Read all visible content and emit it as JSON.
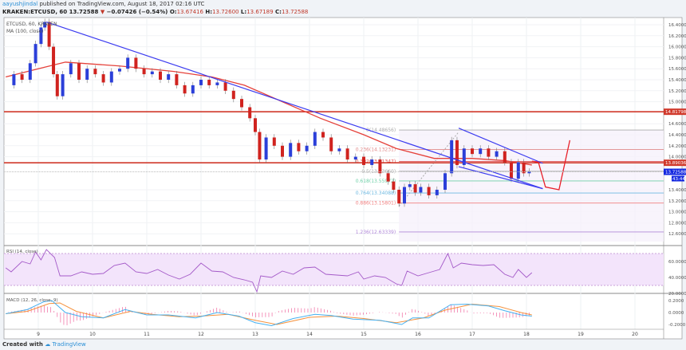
{
  "header": {
    "author": "aayushjindal",
    "published": "published on TradingView.com, August 18, 2017 02:16 UTC",
    "symbol": "KRAKEN:ETCUSD, 60",
    "last": "13.72588",
    "change": "−0.07426 (−0.54%)",
    "o_label": "O:",
    "o": "13.67416",
    "h_label": "H:",
    "h": "13.72600",
    "l_label": "L:",
    "l": "13.67189",
    "c_label": "C:",
    "c": "13.72588"
  },
  "legend": {
    "main": "ETCUSD, 60, KRAKEN",
    "ma": "MA (100, close)",
    "rsi": "RSI (14, close)",
    "macd": "MACD (12, 26, close, 9)"
  },
  "footer": {
    "created": "Created with",
    "brand": "TradingView"
  },
  "colors": {
    "up": "#2b3fd9",
    "down": "#d0231f",
    "ma": "#e5413a",
    "trend": "#3b3bf0",
    "hline": "#d0392b",
    "rsi": "#a45ac8",
    "macd": "#45b0f0",
    "signal": "#f5923e",
    "hist": "#f06aa0"
  },
  "chart_data": {
    "type": "candlestick",
    "x_ticks": [
      "9",
      "10",
      "11",
      "12",
      "13",
      "14",
      "15",
      "16",
      "17",
      "18",
      "19",
      "20"
    ],
    "price_ticks": [
      "16.40000",
      "16.20000",
      "16.00000",
      "15.80000",
      "15.60000",
      "15.40000",
      "15.20000",
      "15.00000",
      "14.60000",
      "14.40000",
      "14.20000",
      "14.00000",
      "13.40000",
      "13.20000",
      "13.00000",
      "12.80000",
      "12.60000"
    ],
    "ylim": [
      12.6,
      16.45
    ],
    "close_series": [
      [
        8.4,
        15.3
      ],
      [
        8.55,
        15.5
      ],
      [
        8.7,
        15.4
      ],
      [
        8.85,
        15.7
      ],
      [
        8.95,
        16.05
      ],
      [
        9.05,
        16.35
      ],
      [
        9.12,
        16.45
      ],
      [
        9.2,
        16.0
      ],
      [
        9.28,
        15.5
      ],
      [
        9.35,
        15.1
      ],
      [
        9.45,
        15.5
      ],
      [
        9.6,
        15.7
      ],
      [
        9.75,
        15.4
      ],
      [
        9.9,
        15.6
      ],
      [
        10.05,
        15.5
      ],
      [
        10.2,
        15.35
      ],
      [
        10.35,
        15.55
      ],
      [
        10.5,
        15.6
      ],
      [
        10.65,
        15.8
      ],
      [
        10.8,
        15.6
      ],
      [
        10.95,
        15.5
      ],
      [
        11.1,
        15.55
      ],
      [
        11.25,
        15.4
      ],
      [
        11.4,
        15.5
      ],
      [
        11.55,
        15.3
      ],
      [
        11.7,
        15.15
      ],
      [
        11.85,
        15.3
      ],
      [
        12.0,
        15.4
      ],
      [
        12.15,
        15.3
      ],
      [
        12.3,
        15.35
      ],
      [
        12.45,
        15.2
      ],
      [
        12.6,
        15.05
      ],
      [
        12.75,
        14.9
      ],
      [
        12.9,
        14.7
      ],
      [
        13.0,
        14.45
      ],
      [
        13.08,
        13.95
      ],
      [
        13.2,
        14.35
      ],
      [
        13.35,
        14.2
      ],
      [
        13.5,
        14.0
      ],
      [
        13.65,
        14.25
      ],
      [
        13.8,
        14.1
      ],
      [
        13.95,
        14.2
      ],
      [
        14.1,
        14.45
      ],
      [
        14.25,
        14.35
      ],
      [
        14.4,
        14.1
      ],
      [
        14.55,
        14.15
      ],
      [
        14.7,
        13.95
      ],
      [
        14.85,
        14.0
      ],
      [
        15.0,
        13.85
      ],
      [
        15.15,
        13.95
      ],
      [
        15.3,
        13.7
      ],
      [
        15.45,
        13.55
      ],
      [
        15.55,
        13.4
      ],
      [
        15.65,
        13.15
      ],
      [
        15.75,
        13.45
      ],
      [
        15.85,
        13.5
      ],
      [
        15.95,
        13.35
      ],
      [
        16.05,
        13.45
      ],
      [
        16.2,
        13.3
      ],
      [
        16.35,
        13.4
      ],
      [
        16.5,
        13.7
      ],
      [
        16.62,
        14.3
      ],
      [
        16.72,
        13.85
      ],
      [
        16.85,
        14.15
      ],
      [
        17.0,
        14.05
      ],
      [
        17.15,
        14.15
      ],
      [
        17.3,
        14.0
      ],
      [
        17.45,
        14.1
      ],
      [
        17.6,
        13.9
      ],
      [
        17.72,
        13.6
      ],
      [
        17.85,
        13.9
      ],
      [
        17.95,
        13.7
      ],
      [
        18.05,
        13.73
      ]
    ],
    "ma100": [
      [
        8.4,
        15.45
      ],
      [
        9.0,
        15.6
      ],
      [
        9.5,
        15.72
      ],
      [
        10.5,
        15.65
      ],
      [
        11.5,
        15.55
      ],
      [
        12.2,
        15.45
      ],
      [
        12.8,
        15.3
      ],
      [
        13.5,
        15.0
      ],
      [
        14.2,
        14.7
      ],
      [
        15.0,
        14.4
      ],
      [
        15.6,
        14.15
      ],
      [
        16.3,
        13.97
      ],
      [
        17.0,
        13.97
      ],
      [
        17.6,
        13.93
      ],
      [
        18.1,
        13.85
      ]
    ],
    "horizontal_levels": [
      {
        "price": 14.81798,
        "label": "14.81798"
      },
      {
        "price": 13.89036,
        "label": "13.89036"
      }
    ],
    "current_price": {
      "label": "13.72588",
      "countdown": "43:44"
    },
    "trendlines": [
      [
        [
          9.15,
          16.45
        ],
        [
          18.3,
          13.42
        ]
      ],
      [
        [
          16.75,
          14.52
        ],
        [
          18.3,
          13.88
        ]
      ],
      [
        [
          16.75,
          13.82
        ],
        [
          18.3,
          13.42
        ]
      ]
    ],
    "forecast": [
      [
        18.1,
        13.92
      ],
      [
        18.22,
        13.9
      ],
      [
        18.35,
        13.45
      ],
      [
        18.6,
        13.4
      ],
      [
        18.8,
        14.3
      ]
    ],
    "fib": [
      {
        "ratio": "0",
        "price": 14.48656,
        "label": "0(14.48656)"
      },
      {
        "ratio": "0.236",
        "price": 14.13231,
        "label": "0.236(14.13231)"
      },
      {
        "ratio": "0.382",
        "price": 13.91347,
        "label": "0.382(13.91347)"
      },
      {
        "ratio": "0.5",
        "price": 13.7366,
        "label": "0.5(13.73660)"
      },
      {
        "ratio": "0.618",
        "price": 13.55972,
        "label": "0.618(13.55972)"
      },
      {
        "ratio": "0.764",
        "price": 13.34088,
        "label": "0.764(13.34088)"
      },
      {
        "ratio": "0.886",
        "price": 13.15801,
        "label": "0.886(13.15801)"
      },
      {
        "ratio": "1.236",
        "price": 12.63339,
        "label": "1.236(12.63339)"
      }
    ],
    "rsi": {
      "ticks": [
        "60.0000",
        "40.0000",
        "20.0000"
      ],
      "bands": [
        70,
        30
      ],
      "values": [
        [
          8.4,
          52
        ],
        [
          8.5,
          47
        ],
        [
          8.7,
          60
        ],
        [
          8.85,
          57
        ],
        [
          8.95,
          72
        ],
        [
          9.05,
          62
        ],
        [
          9.15,
          75
        ],
        [
          9.3,
          65
        ],
        [
          9.4,
          42
        ],
        [
          9.6,
          42
        ],
        [
          9.8,
          47
        ],
        [
          10.0,
          44
        ],
        [
          10.2,
          45
        ],
        [
          10.4,
          55
        ],
        [
          10.6,
          58
        ],
        [
          10.8,
          47
        ],
        [
          11.0,
          45
        ],
        [
          11.2,
          50
        ],
        [
          11.4,
          43
        ],
        [
          11.6,
          38
        ],
        [
          11.8,
          44
        ],
        [
          12.0,
          58
        ],
        [
          12.2,
          48
        ],
        [
          12.4,
          47
        ],
        [
          12.6,
          40
        ],
        [
          12.8,
          37
        ],
        [
          12.95,
          34
        ],
        [
          13.03,
          22
        ],
        [
          13.1,
          42
        ],
        [
          13.3,
          40
        ],
        [
          13.5,
          48
        ],
        [
          13.7,
          44
        ],
        [
          13.9,
          52
        ],
        [
          14.1,
          53
        ],
        [
          14.3,
          44
        ],
        [
          14.5,
          43
        ],
        [
          14.7,
          42
        ],
        [
          14.9,
          47
        ],
        [
          15.0,
          38
        ],
        [
          15.2,
          42
        ],
        [
          15.4,
          40
        ],
        [
          15.6,
          32
        ],
        [
          15.7,
          30
        ],
        [
          15.8,
          48
        ],
        [
          16.0,
          42
        ],
        [
          16.2,
          46
        ],
        [
          16.4,
          50
        ],
        [
          16.55,
          70
        ],
        [
          16.65,
          52
        ],
        [
          16.8,
          58
        ],
        [
          17.0,
          56
        ],
        [
          17.2,
          55
        ],
        [
          17.4,
          56
        ],
        [
          17.6,
          44
        ],
        [
          17.75,
          40
        ],
        [
          17.85,
          50
        ],
        [
          18.0,
          40
        ],
        [
          18.1,
          46
        ]
      ]
    },
    "macd": {
      "ticks": [
        "0.2000",
        "0.0000",
        "-0.2000"
      ],
      "macd": [
        [
          8.4,
          -0.02
        ],
        [
          8.8,
          0.05
        ],
        [
          9.1,
          0.18
        ],
        [
          9.25,
          0.2
        ],
        [
          9.5,
          0.0
        ],
        [
          9.8,
          -0.07
        ],
        [
          10.2,
          -0.09
        ],
        [
          10.6,
          0.05
        ],
        [
          11.0,
          -0.04
        ],
        [
          11.4,
          -0.04
        ],
        [
          11.9,
          -0.09
        ],
        [
          12.3,
          0.0
        ],
        [
          12.7,
          -0.06
        ],
        [
          13.0,
          -0.17
        ],
        [
          13.3,
          -0.22
        ],
        [
          13.7,
          -0.1
        ],
        [
          14.1,
          -0.03
        ],
        [
          14.4,
          -0.05
        ],
        [
          14.8,
          -0.11
        ],
        [
          15.3,
          -0.13
        ],
        [
          15.7,
          -0.2
        ],
        [
          15.9,
          -0.09
        ],
        [
          16.2,
          -0.09
        ],
        [
          16.6,
          0.13
        ],
        [
          16.9,
          0.14
        ],
        [
          17.3,
          0.11
        ],
        [
          17.6,
          0.03
        ],
        [
          17.9,
          -0.04
        ],
        [
          18.1,
          -0.06
        ]
      ],
      "signal": [
        [
          8.4,
          -0.02
        ],
        [
          8.8,
          0.02
        ],
        [
          9.2,
          0.15
        ],
        [
          9.4,
          0.16
        ],
        [
          9.7,
          0.02
        ],
        [
          10.2,
          -0.09
        ],
        [
          10.7,
          0.02
        ],
        [
          11.1,
          -0.03
        ],
        [
          11.6,
          -0.07
        ],
        [
          12.0,
          -0.06
        ],
        [
          12.5,
          -0.03
        ],
        [
          13.0,
          -0.13
        ],
        [
          13.4,
          -0.2
        ],
        [
          14.0,
          -0.08
        ],
        [
          14.5,
          -0.06
        ],
        [
          15.0,
          -0.1
        ],
        [
          15.6,
          -0.17
        ],
        [
          16.1,
          -0.09
        ],
        [
          16.5,
          0.04
        ],
        [
          17.0,
          0.14
        ],
        [
          17.5,
          0.1
        ],
        [
          17.9,
          0.0
        ],
        [
          18.1,
          -0.04
        ]
      ]
    }
  }
}
